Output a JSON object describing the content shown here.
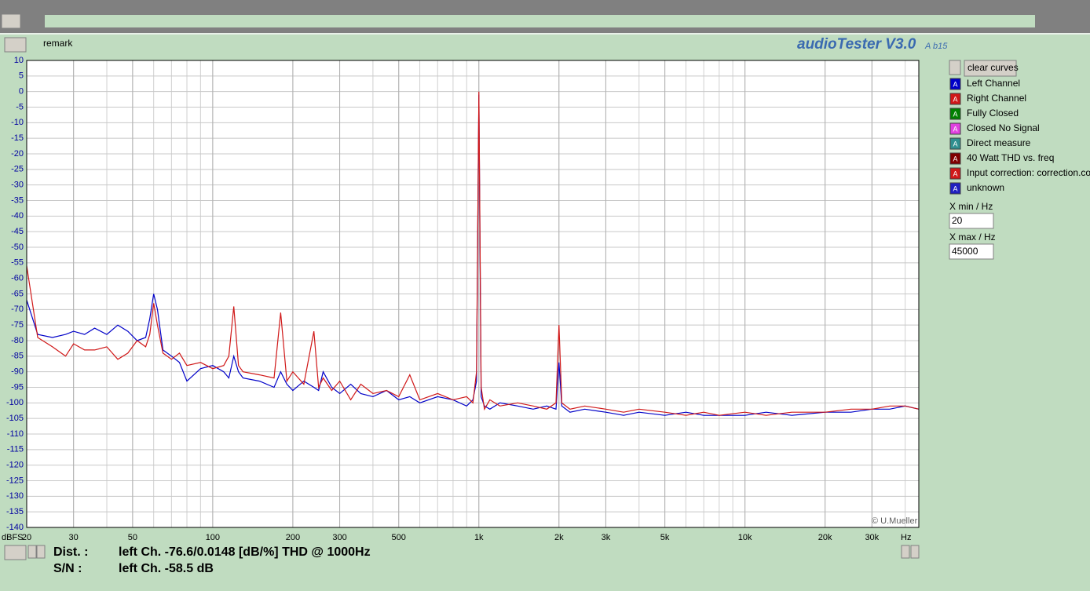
{
  "chart_data": {
    "type": "line",
    "xlabel": "Hz",
    "ylabel": "dBFS",
    "log_x": true,
    "grid": true,
    "xlim": [
      20,
      45000
    ],
    "ylim": [
      -140,
      10
    ],
    "xticks": [
      20,
      30,
      50,
      100,
      200,
      300,
      500,
      {
        "value": 1000,
        "label": "1k"
      },
      {
        "value": 2000,
        "label": "2k"
      },
      {
        "value": 3000,
        "label": "3k"
      },
      {
        "value": 5000,
        "label": "5k"
      },
      {
        "value": 10000,
        "label": "10k"
      },
      {
        "value": 20000,
        "label": "20k"
      },
      {
        "value": 30000,
        "label": "30k"
      }
    ],
    "yticks": [
      10,
      5,
      0,
      -5,
      -10,
      -15,
      -20,
      -25,
      -30,
      -35,
      -40,
      -45,
      -50,
      -55,
      -60,
      -65,
      -70,
      -75,
      -80,
      -85,
      -90,
      -95,
      -100,
      -105,
      -110,
      -115,
      -120,
      -125,
      -130,
      -135,
      -140
    ],
    "x": [
      20,
      22,
      25,
      28,
      30,
      33,
      36,
      40,
      44,
      48,
      52,
      56,
      58,
      60,
      62,
      65,
      70,
      75,
      80,
      90,
      100,
      110,
      115,
      120,
      125,
      130,
      150,
      170,
      180,
      190,
      200,
      220,
      240,
      250,
      260,
      280,
      300,
      330,
      360,
      400,
      450,
      500,
      550,
      600,
      700,
      800,
      900,
      950,
      980,
      1000,
      1020,
      1050,
      1100,
      1200,
      1400,
      1600,
      1800,
      1950,
      2000,
      2050,
      2200,
      2500,
      3000,
      3500,
      4000,
      5000,
      6000,
      7000,
      8000,
      10000,
      12000,
      15000,
      20000,
      25000,
      30000,
      35000,
      40000,
      45000
    ],
    "series": [
      {
        "name": "Left Channel",
        "color": "#0000c8",
        "values": [
          -67,
          -78,
          -79,
          -78,
          -77,
          -78,
          -76,
          -78,
          -75,
          -77,
          -80,
          -79,
          -73,
          -65,
          -70,
          -83,
          -85,
          -87,
          -93,
          -89,
          -88,
          -90,
          -92,
          -85,
          -90,
          -92,
          -93,
          -95,
          -90,
          -94,
          -96,
          -93,
          -95,
          -96,
          -90,
          -95,
          -97,
          -94,
          -97,
          -98,
          -96,
          -99,
          -98,
          -100,
          -98,
          -99,
          -101,
          -99,
          -93,
          -1,
          -98,
          -101,
          -102,
          -100,
          -101,
          -102,
          -101,
          -102,
          -87,
          -101,
          -103,
          -102,
          -103,
          -104,
          -103,
          -104,
          -103,
          -104,
          -104,
          -104,
          -103,
          -104,
          -103,
          -103,
          -102,
          -102,
          -101,
          -102
        ]
      },
      {
        "name": "Right Channel",
        "color": "#d01818",
        "values": [
          -56,
          -79,
          -82,
          -85,
          -81,
          -83,
          -83,
          -82,
          -86,
          -84,
          -80,
          -82,
          -78,
          -68,
          -75,
          -84,
          -86,
          -84,
          -88,
          -87,
          -89,
          -88,
          -85,
          -69,
          -88,
          -90,
          -91,
          -92,
          -71,
          -93,
          -90,
          -94,
          -77,
          -95,
          -92,
          -96,
          -93,
          -99,
          -94,
          -97,
          -96,
          -98,
          -91,
          -99,
          -97,
          -99,
          -98,
          -100,
          -90,
          0,
          -95,
          -102,
          -99,
          -101,
          -100,
          -101,
          -102,
          -100,
          -75,
          -100,
          -102,
          -101,
          -102,
          -103,
          -102,
          -103,
          -104,
          -103,
          -104,
          -103,
          -104,
          -103,
          -103,
          -102,
          -102,
          -101,
          -101,
          -102
        ]
      }
    ]
  },
  "ui": {
    "remark": "remark",
    "app_title": "audioTester V3.0",
    "app_version": "A b15",
    "clear_button": "clear curves",
    "other_curves": [
      {
        "name": "Fully Closed",
        "color": "#008000"
      },
      {
        "name": "Closed No Signal",
        "color": "#e040e0"
      },
      {
        "name": "Direct measure",
        "color": "#2f8f8f"
      },
      {
        "name": "40 Watt THD vs. freq",
        "color": "#800000"
      },
      {
        "name": "Input correction: correction.cor",
        "color": "#d01818"
      },
      {
        "name": "unknown",
        "color": "#2020c0"
      }
    ],
    "icon_letter": "A",
    "xmin_label": "X min / Hz",
    "xmax_label": "X max / Hz",
    "copyright": "© U.Mueller",
    "dist_label": "Dist. :",
    "dist_value": "left Ch. -76.6/0.0148 [dB/%] THD @ 1000Hz",
    "sn_label": "S/N :",
    "sn_value": "left Ch. -58.5 dB"
  }
}
